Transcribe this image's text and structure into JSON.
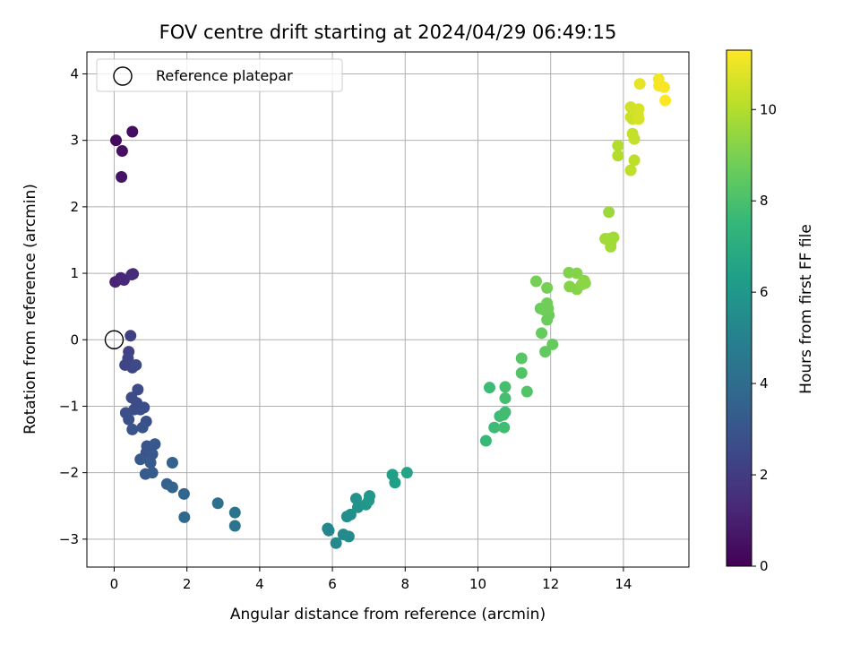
{
  "chart_data": {
    "type": "scatter",
    "title": "FOV centre drift starting at 2024/04/29 06:49:15",
    "xlabel": "Angular distance from reference (arcmin)",
    "ylabel": "Rotation from reference (arcmin)",
    "colorbar_label": "Hours from first FF file",
    "xlim": [
      -0.75,
      15.8
    ],
    "ylim": [
      -3.42,
      4.33
    ],
    "clim": [
      0,
      11.3
    ],
    "xticks": [
      0,
      2,
      4,
      6,
      8,
      10,
      12,
      14
    ],
    "xtick_labels": [
      "0",
      "2",
      "4",
      "6",
      "8",
      "10",
      "12",
      "14"
    ],
    "yticks": [
      -3,
      -2,
      -1,
      0,
      1,
      2,
      3,
      4
    ],
    "ytick_labels": [
      "−3",
      "−2",
      "−1",
      "0",
      "1",
      "2",
      "3",
      "4"
    ],
    "cticks": [
      0,
      2,
      4,
      6,
      8,
      10
    ],
    "ctick_labels": [
      "0",
      "2",
      "4",
      "6",
      "8",
      "10"
    ],
    "grid": true,
    "legend": {
      "position": "top-left",
      "entries": [
        "Reference platepar"
      ]
    },
    "colormap": [
      "#440154",
      "#482878",
      "#3e4989",
      "#31688e",
      "#26828e",
      "#1f9e89",
      "#35b779",
      "#6ece58",
      "#b5de2b",
      "#fde725"
    ],
    "reference_point": {
      "x": 0,
      "y": 0
    },
    "points": [
      {
        "x": 0.05,
        "y": 3.0,
        "c": 0.3
      },
      {
        "x": 0.5,
        "y": 3.13,
        "c": 0.4
      },
      {
        "x": 0.22,
        "y": 2.84,
        "c": 0.5
      },
      {
        "x": 0.2,
        "y": 2.45,
        "c": 0.6
      },
      {
        "x": 0.03,
        "y": 0.87,
        "c": 1.1
      },
      {
        "x": 0.18,
        "y": 0.93,
        "c": 1.2
      },
      {
        "x": 0.27,
        "y": 0.9,
        "c": 1.3
      },
      {
        "x": 0.48,
        "y": 0.98,
        "c": 1.4
      },
      {
        "x": 0.52,
        "y": 0.99,
        "c": 1.4
      },
      {
        "x": 0.45,
        "y": 0.06,
        "c": 2.2
      },
      {
        "x": 0.4,
        "y": -0.18,
        "c": 2.3
      },
      {
        "x": 0.38,
        "y": -0.28,
        "c": 2.3
      },
      {
        "x": 0.3,
        "y": -0.38,
        "c": 2.4
      },
      {
        "x": 0.5,
        "y": -0.42,
        "c": 2.4
      },
      {
        "x": 0.6,
        "y": -0.38,
        "c": 2.5
      },
      {
        "x": 0.65,
        "y": -0.75,
        "c": 2.6
      },
      {
        "x": 0.48,
        "y": -0.87,
        "c": 2.6
      },
      {
        "x": 0.62,
        "y": -0.95,
        "c": 2.6
      },
      {
        "x": 0.82,
        "y": -1.02,
        "c": 2.7
      },
      {
        "x": 0.72,
        "y": -1.05,
        "c": 2.7
      },
      {
        "x": 0.55,
        "y": -1.05,
        "c": 2.7
      },
      {
        "x": 0.32,
        "y": -1.1,
        "c": 2.8
      },
      {
        "x": 0.4,
        "y": -1.2,
        "c": 2.8
      },
      {
        "x": 0.88,
        "y": -1.23,
        "c": 2.8
      },
      {
        "x": 0.5,
        "y": -1.35,
        "c": 2.9
      },
      {
        "x": 0.78,
        "y": -1.32,
        "c": 2.9
      },
      {
        "x": 0.9,
        "y": -1.6,
        "c": 3.0
      },
      {
        "x": 0.88,
        "y": -1.7,
        "c": 3.0
      },
      {
        "x": 1.12,
        "y": -1.57,
        "c": 3.1
      },
      {
        "x": 1.05,
        "y": -1.72,
        "c": 3.1
      },
      {
        "x": 0.72,
        "y": -1.8,
        "c": 3.1
      },
      {
        "x": 1.0,
        "y": -1.85,
        "c": 3.2
      },
      {
        "x": 0.86,
        "y": -2.02,
        "c": 3.2
      },
      {
        "x": 1.05,
        "y": -2.0,
        "c": 3.3
      },
      {
        "x": 1.6,
        "y": -1.85,
        "c": 3.5
      },
      {
        "x": 1.45,
        "y": -2.17,
        "c": 3.5
      },
      {
        "x": 1.6,
        "y": -2.22,
        "c": 3.6
      },
      {
        "x": 1.92,
        "y": -2.32,
        "c": 3.7
      },
      {
        "x": 1.93,
        "y": -2.67,
        "c": 3.8
      },
      {
        "x": 2.85,
        "y": -2.46,
        "c": 4.1
      },
      {
        "x": 3.32,
        "y": -2.6,
        "c": 4.3
      },
      {
        "x": 3.32,
        "y": -2.8,
        "c": 4.3
      },
      {
        "x": 5.87,
        "y": -2.84,
        "c": 5.2
      },
      {
        "x": 5.9,
        "y": -2.87,
        "c": 5.2
      },
      {
        "x": 6.1,
        "y": -3.06,
        "c": 5.3
      },
      {
        "x": 6.3,
        "y": -2.93,
        "c": 5.4
      },
      {
        "x": 6.45,
        "y": -2.96,
        "c": 5.4
      },
      {
        "x": 6.4,
        "y": -2.66,
        "c": 5.5
      },
      {
        "x": 6.5,
        "y": -2.63,
        "c": 5.6
      },
      {
        "x": 6.65,
        "y": -2.39,
        "c": 5.8
      },
      {
        "x": 6.7,
        "y": -2.52,
        "c": 5.8
      },
      {
        "x": 6.92,
        "y": -2.48,
        "c": 5.9
      },
      {
        "x": 7.02,
        "y": -2.35,
        "c": 6.0
      },
      {
        "x": 7.0,
        "y": -2.42,
        "c": 6.0
      },
      {
        "x": 7.65,
        "y": -2.03,
        "c": 6.4
      },
      {
        "x": 7.72,
        "y": -2.15,
        "c": 6.4
      },
      {
        "x": 8.05,
        "y": -2.0,
        "c": 6.6
      },
      {
        "x": 10.22,
        "y": -1.52,
        "c": 7.6
      },
      {
        "x": 10.45,
        "y": -1.32,
        "c": 7.7
      },
      {
        "x": 10.6,
        "y": -1.15,
        "c": 7.7
      },
      {
        "x": 10.7,
        "y": -1.13,
        "c": 7.8
      },
      {
        "x": 10.75,
        "y": -1.09,
        "c": 7.8
      },
      {
        "x": 10.72,
        "y": -1.32,
        "c": 7.8
      },
      {
        "x": 10.32,
        "y": -0.72,
        "c": 7.7
      },
      {
        "x": 10.75,
        "y": -0.88,
        "c": 7.9
      },
      {
        "x": 10.75,
        "y": -0.71,
        "c": 7.9
      },
      {
        "x": 11.35,
        "y": -0.78,
        "c": 8.2
      },
      {
        "x": 11.2,
        "y": -0.5,
        "c": 8.2
      },
      {
        "x": 11.2,
        "y": -0.28,
        "c": 8.3
      },
      {
        "x": 11.85,
        "y": -0.18,
        "c": 8.5
      },
      {
        "x": 12.05,
        "y": -0.07,
        "c": 8.6
      },
      {
        "x": 11.75,
        "y": 0.1,
        "c": 8.6
      },
      {
        "x": 11.9,
        "y": 0.3,
        "c": 8.7
      },
      {
        "x": 11.95,
        "y": 0.37,
        "c": 8.7
      },
      {
        "x": 11.72,
        "y": 0.47,
        "c": 8.7
      },
      {
        "x": 11.82,
        "y": 0.45,
        "c": 8.8
      },
      {
        "x": 11.93,
        "y": 0.47,
        "c": 8.8
      },
      {
        "x": 11.9,
        "y": 0.55,
        "c": 8.8
      },
      {
        "x": 11.6,
        "y": 0.88,
        "c": 8.9
      },
      {
        "x": 11.9,
        "y": 0.78,
        "c": 8.9
      },
      {
        "x": 12.5,
        "y": 1.01,
        "c": 9.1
      },
      {
        "x": 12.72,
        "y": 1.0,
        "c": 9.2
      },
      {
        "x": 12.52,
        "y": 0.8,
        "c": 9.2
      },
      {
        "x": 12.72,
        "y": 0.76,
        "c": 9.2
      },
      {
        "x": 12.85,
        "y": 0.83,
        "c": 9.3
      },
      {
        "x": 12.92,
        "y": 0.89,
        "c": 9.3
      },
      {
        "x": 12.95,
        "y": 0.85,
        "c": 9.3
      },
      {
        "x": 13.6,
        "y": 1.92,
        "c": 9.6
      },
      {
        "x": 13.5,
        "y": 1.52,
        "c": 9.7
      },
      {
        "x": 13.62,
        "y": 1.52,
        "c": 9.7
      },
      {
        "x": 13.73,
        "y": 1.54,
        "c": 9.7
      },
      {
        "x": 13.65,
        "y": 1.45,
        "c": 9.7
      },
      {
        "x": 13.65,
        "y": 1.4,
        "c": 9.7
      },
      {
        "x": 13.85,
        "y": 2.92,
        "c": 10.0
      },
      {
        "x": 13.85,
        "y": 2.77,
        "c": 10.0
      },
      {
        "x": 14.2,
        "y": 2.55,
        "c": 10.2
      },
      {
        "x": 14.3,
        "y": 2.7,
        "c": 10.2
      },
      {
        "x": 14.25,
        "y": 3.1,
        "c": 10.3
      },
      {
        "x": 14.3,
        "y": 3.02,
        "c": 10.3
      },
      {
        "x": 14.2,
        "y": 3.35,
        "c": 10.4
      },
      {
        "x": 14.25,
        "y": 3.32,
        "c": 10.4
      },
      {
        "x": 14.3,
        "y": 3.42,
        "c": 10.5
      },
      {
        "x": 14.4,
        "y": 3.38,
        "c": 10.5
      },
      {
        "x": 14.2,
        "y": 3.5,
        "c": 10.5
      },
      {
        "x": 14.42,
        "y": 3.47,
        "c": 10.6
      },
      {
        "x": 14.42,
        "y": 3.32,
        "c": 10.6
      },
      {
        "x": 14.45,
        "y": 3.85,
        "c": 10.9
      },
      {
        "x": 14.97,
        "y": 3.92,
        "c": 11.1
      },
      {
        "x": 14.98,
        "y": 3.82,
        "c": 11.2
      },
      {
        "x": 15.12,
        "y": 3.8,
        "c": 11.2
      },
      {
        "x": 15.15,
        "y": 3.6,
        "c": 11.3
      }
    ]
  }
}
